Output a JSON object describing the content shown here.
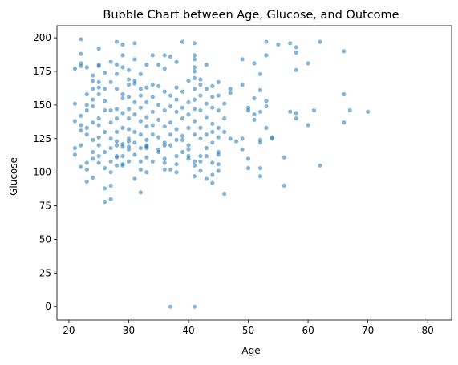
{
  "chart_data": {
    "type": "scatter",
    "title": "Bubble Chart between Age, Glucose, and Outcome",
    "xlabel": "Age",
    "ylabel": "Glucose",
    "xlim": [
      18,
      84
    ],
    "ylim": [
      -10,
      209
    ],
    "xticks": [
      20,
      30,
      40,
      50,
      60,
      70,
      80
    ],
    "yticks": [
      0,
      25,
      50,
      75,
      100,
      125,
      150,
      175,
      200
    ],
    "grid": false,
    "legend": "none",
    "point_color": "#1f77b4",
    "point_opacity": 0.55,
    "series": [
      {
        "points": [
          [
            22,
            199
          ],
          [
            28,
            197
          ],
          [
            29,
            195
          ],
          [
            31,
            196
          ],
          [
            39,
            197
          ],
          [
            41,
            196
          ],
          [
            53,
            197
          ],
          [
            55,
            195
          ],
          [
            57,
            196
          ],
          [
            62,
            197
          ],
          [
            21,
            177
          ],
          [
            22,
            179
          ],
          [
            22,
            181
          ],
          [
            22,
            188
          ],
          [
            23,
            178
          ],
          [
            24,
            172
          ],
          [
            24,
            168
          ],
          [
            25,
            180
          ],
          [
            25,
            179
          ],
          [
            25,
            192
          ],
          [
            26,
            174
          ],
          [
            27,
            182
          ],
          [
            28,
            180
          ],
          [
            28,
            173
          ],
          [
            29,
            187
          ],
          [
            29,
            178
          ],
          [
            30,
            169
          ],
          [
            30,
            176
          ],
          [
            31,
            184
          ],
          [
            31,
            168
          ],
          [
            32,
            173
          ],
          [
            33,
            180
          ],
          [
            33,
            163
          ],
          [
            34,
            187
          ],
          [
            35,
            180
          ],
          [
            36,
            187
          ],
          [
            36,
            177
          ],
          [
            37,
            186
          ],
          [
            38,
            182
          ],
          [
            40,
            168
          ],
          [
            41,
            187
          ],
          [
            41,
            184
          ],
          [
            41,
            178
          ],
          [
            41,
            170
          ],
          [
            41,
            175
          ],
          [
            42,
            165
          ],
          [
            43,
            180
          ],
          [
            49,
            184
          ],
          [
            51,
            181
          ],
          [
            52,
            173
          ],
          [
            53,
            187
          ],
          [
            58,
            193
          ],
          [
            58,
            189
          ],
          [
            58,
            176
          ],
          [
            60,
            181
          ],
          [
            66,
            190
          ],
          [
            21,
            151
          ],
          [
            21,
            138
          ],
          [
            22,
            142
          ],
          [
            22,
            135
          ],
          [
            22,
            131
          ],
          [
            23,
            158
          ],
          [
            23,
            150
          ],
          [
            23,
            146
          ],
          [
            23,
            133
          ],
          [
            23,
            128
          ],
          [
            24,
            162
          ],
          [
            24,
            154
          ],
          [
            24,
            149
          ],
          [
            24,
            137
          ],
          [
            24,
            124
          ],
          [
            25,
            167
          ],
          [
            25,
            163
          ],
          [
            25,
            158
          ],
          [
            25,
            140
          ],
          [
            25,
            135
          ],
          [
            25,
            126
          ],
          [
            26,
            162
          ],
          [
            26,
            153
          ],
          [
            26,
            146
          ],
          [
            26,
            130
          ],
          [
            27,
            167
          ],
          [
            27,
            146
          ],
          [
            27,
            137
          ],
          [
            27,
            125
          ],
          [
            28,
            162
          ],
          [
            28,
            147
          ],
          [
            28,
            140
          ],
          [
            28,
            130
          ],
          [
            28,
            120
          ],
          [
            29,
            158
          ],
          [
            29,
            155
          ],
          [
            29,
            144
          ],
          [
            29,
            133
          ],
          [
            29,
            121
          ],
          [
            30,
            165
          ],
          [
            30,
            156
          ],
          [
            30,
            147
          ],
          [
            30,
            140
          ],
          [
            30,
            132
          ],
          [
            30,
            125
          ],
          [
            31,
            166
          ],
          [
            31,
            152
          ],
          [
            31,
            143
          ],
          [
            31,
            130
          ],
          [
            31,
            122
          ],
          [
            32,
            162
          ],
          [
            32,
            157
          ],
          [
            32,
            148
          ],
          [
            32,
            138
          ],
          [
            32,
            128
          ],
          [
            33,
            152
          ],
          [
            33,
            141
          ],
          [
            33,
            134
          ],
          [
            33,
            124
          ],
          [
            33,
            118
          ],
          [
            34,
            165
          ],
          [
            34,
            156
          ],
          [
            34,
            145
          ],
          [
            34,
            135
          ],
          [
            34,
            128
          ],
          [
            35,
            164
          ],
          [
            35,
            150
          ],
          [
            35,
            139
          ],
          [
            35,
            126
          ],
          [
            36,
            160
          ],
          [
            36,
            146
          ],
          [
            36,
            134
          ],
          [
            36,
            122
          ],
          [
            37,
            157
          ],
          [
            37,
            149
          ],
          [
            37,
            137
          ],
          [
            37,
            128
          ],
          [
            38,
            163
          ],
          [
            38,
            154
          ],
          [
            38,
            145
          ],
          [
            38,
            132
          ],
          [
            38,
            124
          ],
          [
            39,
            160
          ],
          [
            39,
            148
          ],
          [
            39,
            140
          ],
          [
            39,
            127
          ],
          [
            40,
            152
          ],
          [
            40,
            143
          ],
          [
            40,
            133
          ],
          [
            40,
            120
          ],
          [
            41,
            162
          ],
          [
            41,
            154
          ],
          [
            41,
            147
          ],
          [
            41,
            138
          ],
          [
            41,
            128
          ],
          [
            42,
            169
          ],
          [
            42,
            157
          ],
          [
            42,
            146
          ],
          [
            42,
            133
          ],
          [
            42,
            125
          ],
          [
            43,
            162
          ],
          [
            43,
            151
          ],
          [
            43,
            141
          ],
          [
            43,
            128
          ],
          [
            44,
            164
          ],
          [
            44,
            156
          ],
          [
            44,
            148
          ],
          [
            44,
            136
          ],
          [
            44,
            130
          ],
          [
            44,
            122
          ],
          [
            45,
            167
          ],
          [
            45,
            157
          ],
          [
            45,
            146
          ],
          [
            45,
            133
          ],
          [
            45,
            126
          ],
          [
            46,
            151
          ],
          [
            46,
            140
          ],
          [
            46,
            130
          ],
          [
            47,
            162
          ],
          [
            47,
            159
          ],
          [
            47,
            125
          ],
          [
            48,
            123
          ],
          [
            49,
            165
          ],
          [
            49,
            125
          ],
          [
            50,
            146
          ],
          [
            50,
            148
          ],
          [
            51,
            155
          ],
          [
            51,
            143
          ],
          [
            51,
            139
          ],
          [
            52,
            161
          ],
          [
            52,
            145
          ],
          [
            52,
            124
          ],
          [
            52,
            122
          ],
          [
            53,
            153
          ],
          [
            53,
            149
          ],
          [
            53,
            133
          ],
          [
            54,
            125
          ],
          [
            54,
            126
          ],
          [
            57,
            145
          ],
          [
            58,
            144
          ],
          [
            58,
            140
          ],
          [
            60,
            135
          ],
          [
            61,
            146
          ],
          [
            66,
            158
          ],
          [
            66,
            137
          ],
          [
            67,
            146
          ],
          [
            70,
            145
          ],
          [
            21,
            118
          ],
          [
            21,
            113
          ],
          [
            22,
            120
          ],
          [
            22,
            104
          ],
          [
            23,
            102
          ],
          [
            23,
            93
          ],
          [
            23,
            107
          ],
          [
            24,
            115
          ],
          [
            24,
            110
          ],
          [
            24,
            96
          ],
          [
            25,
            112
          ],
          [
            25,
            107
          ],
          [
            25,
            120
          ],
          [
            26,
            115
          ],
          [
            26,
            103
          ],
          [
            26,
            88
          ],
          [
            26,
            78
          ],
          [
            27,
            118
          ],
          [
            27,
            108
          ],
          [
            27,
            100
          ],
          [
            27,
            90
          ],
          [
            27,
            80
          ],
          [
            28,
            112
          ],
          [
            28,
            123
          ],
          [
            28,
            111
          ],
          [
            28,
            105
          ],
          [
            29,
            119
          ],
          [
            29,
            112
          ],
          [
            29,
            105
          ],
          [
            29,
            106
          ],
          [
            30,
            123
          ],
          [
            30,
            119
          ],
          [
            30,
            108
          ],
          [
            30,
            117
          ],
          [
            31,
            113
          ],
          [
            31,
            95
          ],
          [
            32,
            118
          ],
          [
            32,
            108
          ],
          [
            32,
            102
          ],
          [
            32,
            85
          ],
          [
            33,
            120
          ],
          [
            33,
            119
          ],
          [
            33,
            111
          ],
          [
            33,
            100
          ],
          [
            34,
            108
          ],
          [
            35,
            115
          ],
          [
            35,
            117
          ],
          [
            36,
            120
          ],
          [
            36,
            110
          ],
          [
            36,
            107
          ],
          [
            36,
            102
          ],
          [
            37,
            120
          ],
          [
            37,
            102
          ],
          [
            38,
            112
          ],
          [
            38,
            106
          ],
          [
            38,
            100
          ],
          [
            39,
            124
          ],
          [
            39,
            115
          ],
          [
            40,
            117
          ],
          [
            40,
            110
          ],
          [
            40,
            112
          ],
          [
            41,
            105
          ],
          [
            41,
            97
          ],
          [
            41,
            108
          ],
          [
            42,
            112
          ],
          [
            42,
            108
          ],
          [
            42,
            101
          ],
          [
            43,
            118
          ],
          [
            43,
            112
          ],
          [
            43,
            95
          ],
          [
            44,
            107
          ],
          [
            44,
            98
          ],
          [
            44,
            92
          ],
          [
            45,
            113
          ],
          [
            45,
            115
          ],
          [
            45,
            101
          ],
          [
            45,
            106
          ],
          [
            46,
            84
          ],
          [
            49,
            117
          ],
          [
            50,
            110
          ],
          [
            50,
            103
          ],
          [
            52,
            103
          ],
          [
            52,
            97
          ],
          [
            56,
            111
          ],
          [
            56,
            90
          ],
          [
            62,
            105
          ],
          [
            37,
            0
          ],
          [
            41,
            0
          ]
        ]
      }
    ]
  }
}
